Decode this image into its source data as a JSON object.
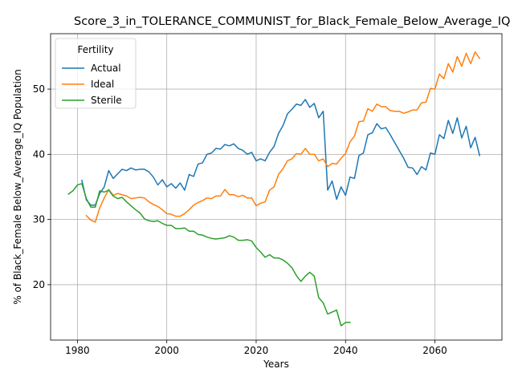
{
  "chart_data": {
    "type": "line",
    "title": "Score_3_in_TOLERANCE_COMMUNIST_for_Black_Female_Below_Average_IQ",
    "xlabel": "Years",
    "ylabel": "% of Black_Female Below_Average_IQ Population",
    "xlim": [
      1974,
      2075
    ],
    "ylim": [
      11.5,
      58.5
    ],
    "xticks": [
      1980,
      2000,
      2020,
      2040,
      2060
    ],
    "yticks": [
      20,
      30,
      40,
      50
    ],
    "grid": true,
    "legend": {
      "title": "Fertility",
      "placement": "top-left"
    },
    "series": [
      {
        "name": "Actual",
        "color": "#1f77b4",
        "x": [
          1981,
          1982,
          1983,
          1984,
          1985,
          1986,
          1987,
          1988,
          1989,
          1990,
          1991,
          1992,
          1993,
          1994,
          1995,
          1996,
          1997,
          1998,
          1999,
          2000,
          2001,
          2002,
          2003,
          2004,
          2005,
          2006,
          2007,
          2008,
          2009,
          2010,
          2011,
          2012,
          2013,
          2014,
          2015,
          2016,
          2017,
          2018,
          2019,
          2020,
          2021,
          2022,
          2023,
          2024,
          2025,
          2026,
          2027,
          2028,
          2029,
          2030,
          2031,
          2032,
          2033,
          2034,
          2035,
          2036,
          2037,
          2038,
          2039,
          2040,
          2041,
          2042,
          2043,
          2044,
          2045,
          2046,
          2047,
          2048,
          2049,
          2050,
          2051,
          2052,
          2053,
          2054,
          2055,
          2056,
          2057,
          2058,
          2059,
          2060,
          2061,
          2062,
          2063,
          2064,
          2065,
          2066,
          2067,
          2068,
          2069,
          2070
        ],
        "y": [
          36.0,
          33.0,
          32.2,
          32.2,
          34.0,
          35.0,
          37.5,
          36.3,
          37.0,
          37.7,
          37.5,
          37.9,
          37.6,
          37.7,
          37.7,
          37.3,
          36.5,
          35.3,
          36.1,
          35.0,
          35.5,
          34.8,
          35.6,
          34.5,
          36.9,
          36.6,
          38.5,
          38.7,
          40.0,
          40.2,
          40.9,
          40.8,
          41.5,
          41.3,
          41.6,
          40.9,
          40.6,
          40.0,
          40.3,
          39.0,
          39.3,
          39.0,
          40.3,
          41.2,
          43.2,
          44.4,
          46.2,
          46.9,
          47.7,
          47.5,
          48.4,
          47.2,
          47.8,
          45.6,
          46.6,
          34.5,
          35.9,
          33.1,
          35.0,
          33.7,
          36.5,
          36.3,
          39.8,
          40.2,
          43.0,
          43.3,
          44.7,
          43.9,
          44.1,
          43.0,
          41.8,
          40.6,
          39.4,
          38.0,
          37.9,
          36.9,
          38.1,
          37.6,
          40.2,
          40.0,
          43.0,
          42.4,
          45.2,
          43.2,
          45.6,
          42.5,
          44.3,
          41.0,
          42.6,
          39.8
        ]
      },
      {
        "name": "Ideal",
        "color": "#ff7f0e",
        "x": [
          1982,
          1983,
          1984,
          1985,
          1986,
          1987,
          1988,
          1989,
          1990,
          1991,
          1992,
          1993,
          1994,
          1995,
          1996,
          1997,
          1998,
          1999,
          2000,
          2001,
          2002,
          2003,
          2004,
          2005,
          2006,
          2007,
          2008,
          2009,
          2010,
          2011,
          2012,
          2013,
          2014,
          2015,
          2016,
          2017,
          2018,
          2019,
          2020,
          2021,
          2022,
          2023,
          2024,
          2025,
          2026,
          2027,
          2028,
          2029,
          2030,
          2031,
          2032,
          2033,
          2034,
          2035,
          2036,
          2037,
          2038,
          2039,
          2040,
          2041,
          2042,
          2043,
          2044,
          2045,
          2046,
          2047,
          2048,
          2049,
          2050,
          2051,
          2052,
          2053,
          2054,
          2055,
          2056,
          2057,
          2058,
          2059,
          2060,
          2061,
          2062,
          2063,
          2064,
          2065,
          2066,
          2067,
          2068,
          2069,
          2070
        ],
        "y": [
          30.6,
          29.9,
          29.6,
          31.8,
          33.3,
          34.6,
          33.7,
          34.0,
          33.8,
          33.6,
          33.2,
          33.3,
          33.4,
          33.3,
          32.7,
          32.3,
          32.0,
          31.5,
          30.9,
          30.8,
          30.5,
          30.5,
          30.9,
          31.5,
          32.2,
          32.6,
          32.9,
          33.3,
          33.2,
          33.6,
          33.6,
          34.6,
          33.8,
          33.8,
          33.5,
          33.7,
          33.3,
          33.3,
          32.1,
          32.5,
          32.7,
          34.5,
          35.0,
          36.9,
          37.8,
          39.0,
          39.3,
          40.1,
          40.0,
          40.9,
          40.0,
          40.0,
          39.0,
          39.3,
          38.1,
          38.6,
          38.5,
          39.4,
          40.1,
          41.9,
          42.8,
          45.0,
          45.1,
          47.0,
          46.6,
          47.7,
          47.3,
          47.3,
          46.7,
          46.6,
          46.6,
          46.3,
          46.5,
          46.8,
          46.8,
          47.9,
          48.0,
          50.1,
          50.0,
          52.3,
          51.6,
          53.9,
          52.6,
          55.0,
          53.5,
          55.5,
          53.9,
          55.7,
          54.7
        ]
      },
      {
        "name": "Sterile",
        "color": "#2ca02c",
        "x": [
          1978,
          1979,
          1980,
          1981,
          1982,
          1983,
          1984,
          1985,
          1986,
          1987,
          1988,
          1989,
          1990,
          1991,
          1992,
          1993,
          1994,
          1995,
          1996,
          1997,
          1998,
          1999,
          2000,
          2001,
          2002,
          2003,
          2004,
          2005,
          2006,
          2007,
          2008,
          2009,
          2010,
          2011,
          2012,
          2013,
          2014,
          2015,
          2016,
          2017,
          2018,
          2019,
          2020,
          2021,
          2022,
          2023,
          2024,
          2025,
          2026,
          2027,
          2028,
          2029,
          2030,
          2031,
          2032,
          2033,
          2034,
          2035,
          2036,
          2037,
          2038,
          2039,
          2040,
          2041
        ],
        "y": [
          33.9,
          34.4,
          35.3,
          35.5,
          33.2,
          31.9,
          31.9,
          34.4,
          34.2,
          34.5,
          33.6,
          33.2,
          33.4,
          32.7,
          32.1,
          31.5,
          31.0,
          30.1,
          29.8,
          29.7,
          29.8,
          29.4,
          29.1,
          29.1,
          28.6,
          28.6,
          28.7,
          28.2,
          28.2,
          27.7,
          27.6,
          27.3,
          27.1,
          27.0,
          27.1,
          27.2,
          27.5,
          27.3,
          26.8,
          26.8,
          26.9,
          26.7,
          25.7,
          25.0,
          24.2,
          24.6,
          24.1,
          24.1,
          23.8,
          23.3,
          22.6,
          21.4,
          20.5,
          21.3,
          21.9,
          21.3,
          18.0,
          17.2,
          15.5,
          15.8,
          16.1,
          13.7,
          14.2,
          14.2
        ]
      }
    ]
  }
}
